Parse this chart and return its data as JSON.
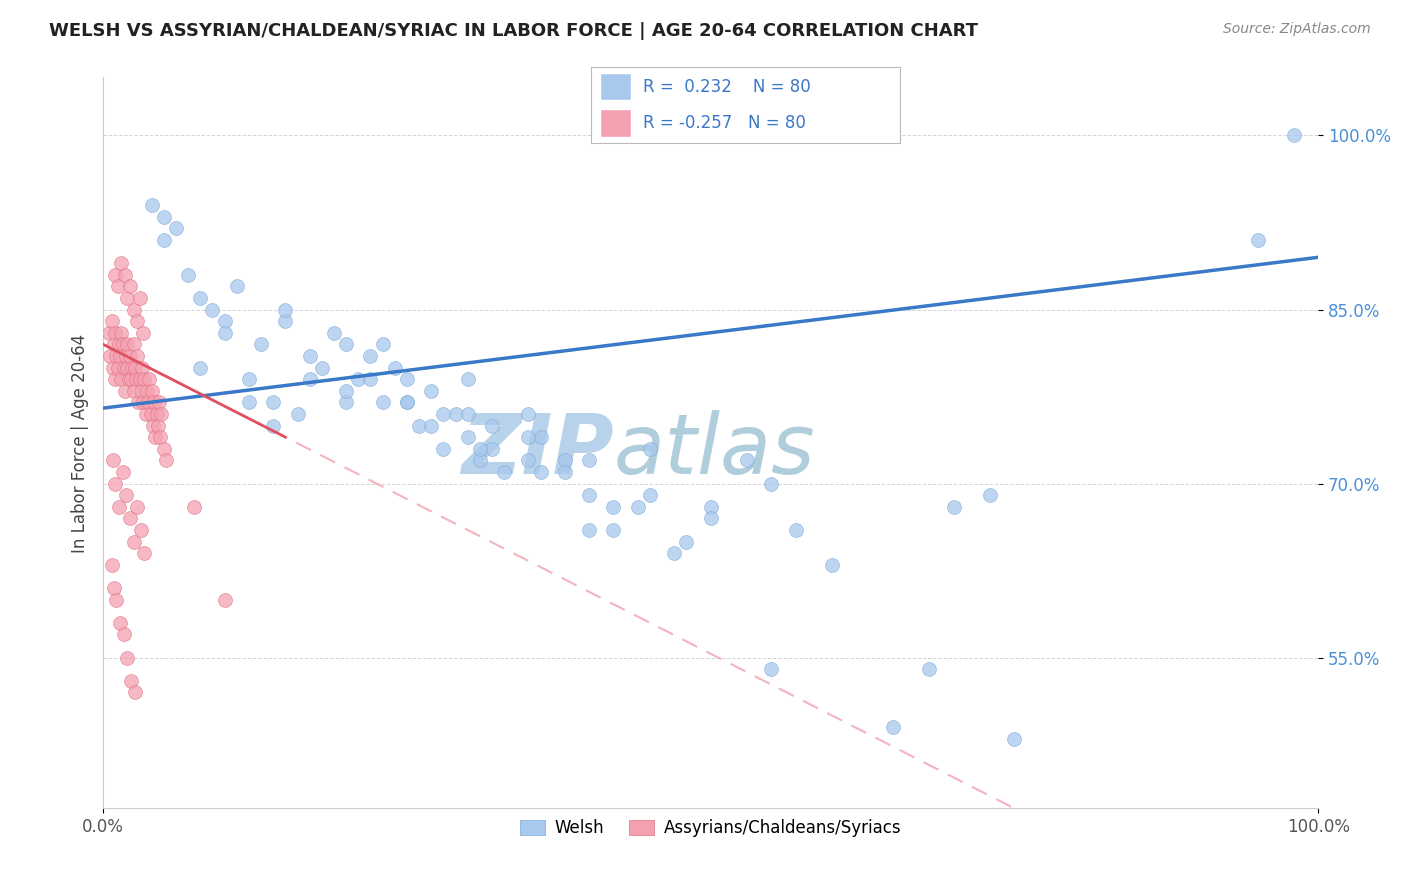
{
  "title": "WELSH VS ASSYRIAN/CHALDEAN/SYRIAC IN LABOR FORCE | AGE 20-64 CORRELATION CHART",
  "source": "Source: ZipAtlas.com",
  "ylabel": "In Labor Force | Age 20-64",
  "xlim": [
    0.0,
    1.0
  ],
  "ylim": [
    0.42,
    1.05
  ],
  "R_blue": 0.232,
  "R_pink": -0.257,
  "N": 80,
  "blue_color": "#A8C8EE",
  "blue_edge": "#7AAAD8",
  "pink_color": "#F4A0B0",
  "pink_edge": "#E07080",
  "trendline_blue": "#3A78C8",
  "trendline_pink_solid": "#E05060",
  "trendline_pink_dashed": "#F0A0B0",
  "watermark_zip": "ZIP",
  "watermark_atlas": "atlas",
  "watermark_color_zip": "#B8D8F0",
  "watermark_color_atlas": "#C8E0E8",
  "blue_scatter_x": [
    0.04,
    0.05,
    0.05,
    0.06,
    0.07,
    0.08,
    0.09,
    0.1,
    0.11,
    0.12,
    0.13,
    0.14,
    0.15,
    0.16,
    0.17,
    0.18,
    0.19,
    0.2,
    0.21,
    0.22,
    0.23,
    0.24,
    0.25,
    0.26,
    0.27,
    0.28,
    0.29,
    0.3,
    0.31,
    0.32,
    0.33,
    0.35,
    0.36,
    0.38,
    0.4,
    0.42,
    0.44,
    0.45,
    0.47,
    0.5,
    0.53,
    0.55,
    0.57,
    0.6,
    0.65,
    0.68,
    0.7,
    0.73,
    0.75,
    0.95,
    0.08,
    0.1,
    0.12,
    0.14,
    0.17,
    0.2,
    0.22,
    0.25,
    0.28,
    0.3,
    0.32,
    0.35,
    0.38,
    0.4,
    0.23,
    0.27,
    0.31,
    0.36,
    0.42,
    0.48,
    0.15,
    0.2,
    0.25,
    0.3,
    0.35,
    0.4,
    0.45,
    0.5,
    0.55,
    0.98
  ],
  "blue_scatter_y": [
    0.94,
    0.93,
    0.91,
    0.92,
    0.88,
    0.86,
    0.85,
    0.84,
    0.87,
    0.79,
    0.82,
    0.77,
    0.84,
    0.76,
    0.81,
    0.8,
    0.83,
    0.77,
    0.79,
    0.81,
    0.82,
    0.8,
    0.77,
    0.75,
    0.78,
    0.73,
    0.76,
    0.79,
    0.72,
    0.75,
    0.71,
    0.76,
    0.74,
    0.72,
    0.69,
    0.66,
    0.68,
    0.73,
    0.64,
    0.68,
    0.72,
    0.7,
    0.66,
    0.63,
    0.49,
    0.54,
    0.68,
    0.69,
    0.48,
    0.91,
    0.8,
    0.83,
    0.77,
    0.75,
    0.79,
    0.78,
    0.79,
    0.77,
    0.76,
    0.74,
    0.73,
    0.72,
    0.71,
    0.66,
    0.77,
    0.75,
    0.73,
    0.71,
    0.68,
    0.65,
    0.85,
    0.82,
    0.79,
    0.76,
    0.74,
    0.72,
    0.69,
    0.67,
    0.54,
    1.0
  ],
  "pink_scatter_x": [
    0.005,
    0.006,
    0.007,
    0.008,
    0.009,
    0.01,
    0.01,
    0.011,
    0.012,
    0.013,
    0.014,
    0.015,
    0.015,
    0.016,
    0.017,
    0.018,
    0.019,
    0.02,
    0.02,
    0.021,
    0.022,
    0.023,
    0.024,
    0.025,
    0.025,
    0.026,
    0.027,
    0.028,
    0.029,
    0.03,
    0.031,
    0.032,
    0.033,
    0.034,
    0.035,
    0.036,
    0.037,
    0.038,
    0.039,
    0.04,
    0.041,
    0.042,
    0.043,
    0.044,
    0.045,
    0.046,
    0.047,
    0.048,
    0.05,
    0.052,
    0.01,
    0.012,
    0.015,
    0.018,
    0.02,
    0.022,
    0.025,
    0.028,
    0.03,
    0.033,
    0.008,
    0.01,
    0.013,
    0.016,
    0.019,
    0.022,
    0.025,
    0.028,
    0.031,
    0.034,
    0.007,
    0.009,
    0.011,
    0.014,
    0.017,
    0.02,
    0.023,
    0.026,
    0.075,
    0.1
  ],
  "pink_scatter_y": [
    0.83,
    0.81,
    0.84,
    0.8,
    0.82,
    0.79,
    0.83,
    0.81,
    0.8,
    0.82,
    0.81,
    0.83,
    0.79,
    0.82,
    0.8,
    0.78,
    0.81,
    0.8,
    0.82,
    0.79,
    0.81,
    0.79,
    0.8,
    0.82,
    0.78,
    0.8,
    0.79,
    0.81,
    0.77,
    0.79,
    0.78,
    0.8,
    0.77,
    0.79,
    0.76,
    0.78,
    0.77,
    0.79,
    0.76,
    0.78,
    0.75,
    0.77,
    0.74,
    0.76,
    0.75,
    0.77,
    0.74,
    0.76,
    0.73,
    0.72,
    0.88,
    0.87,
    0.89,
    0.88,
    0.86,
    0.87,
    0.85,
    0.84,
    0.86,
    0.83,
    0.72,
    0.7,
    0.68,
    0.71,
    0.69,
    0.67,
    0.65,
    0.68,
    0.66,
    0.64,
    0.63,
    0.61,
    0.6,
    0.58,
    0.57,
    0.55,
    0.53,
    0.52,
    0.68,
    0.6
  ]
}
